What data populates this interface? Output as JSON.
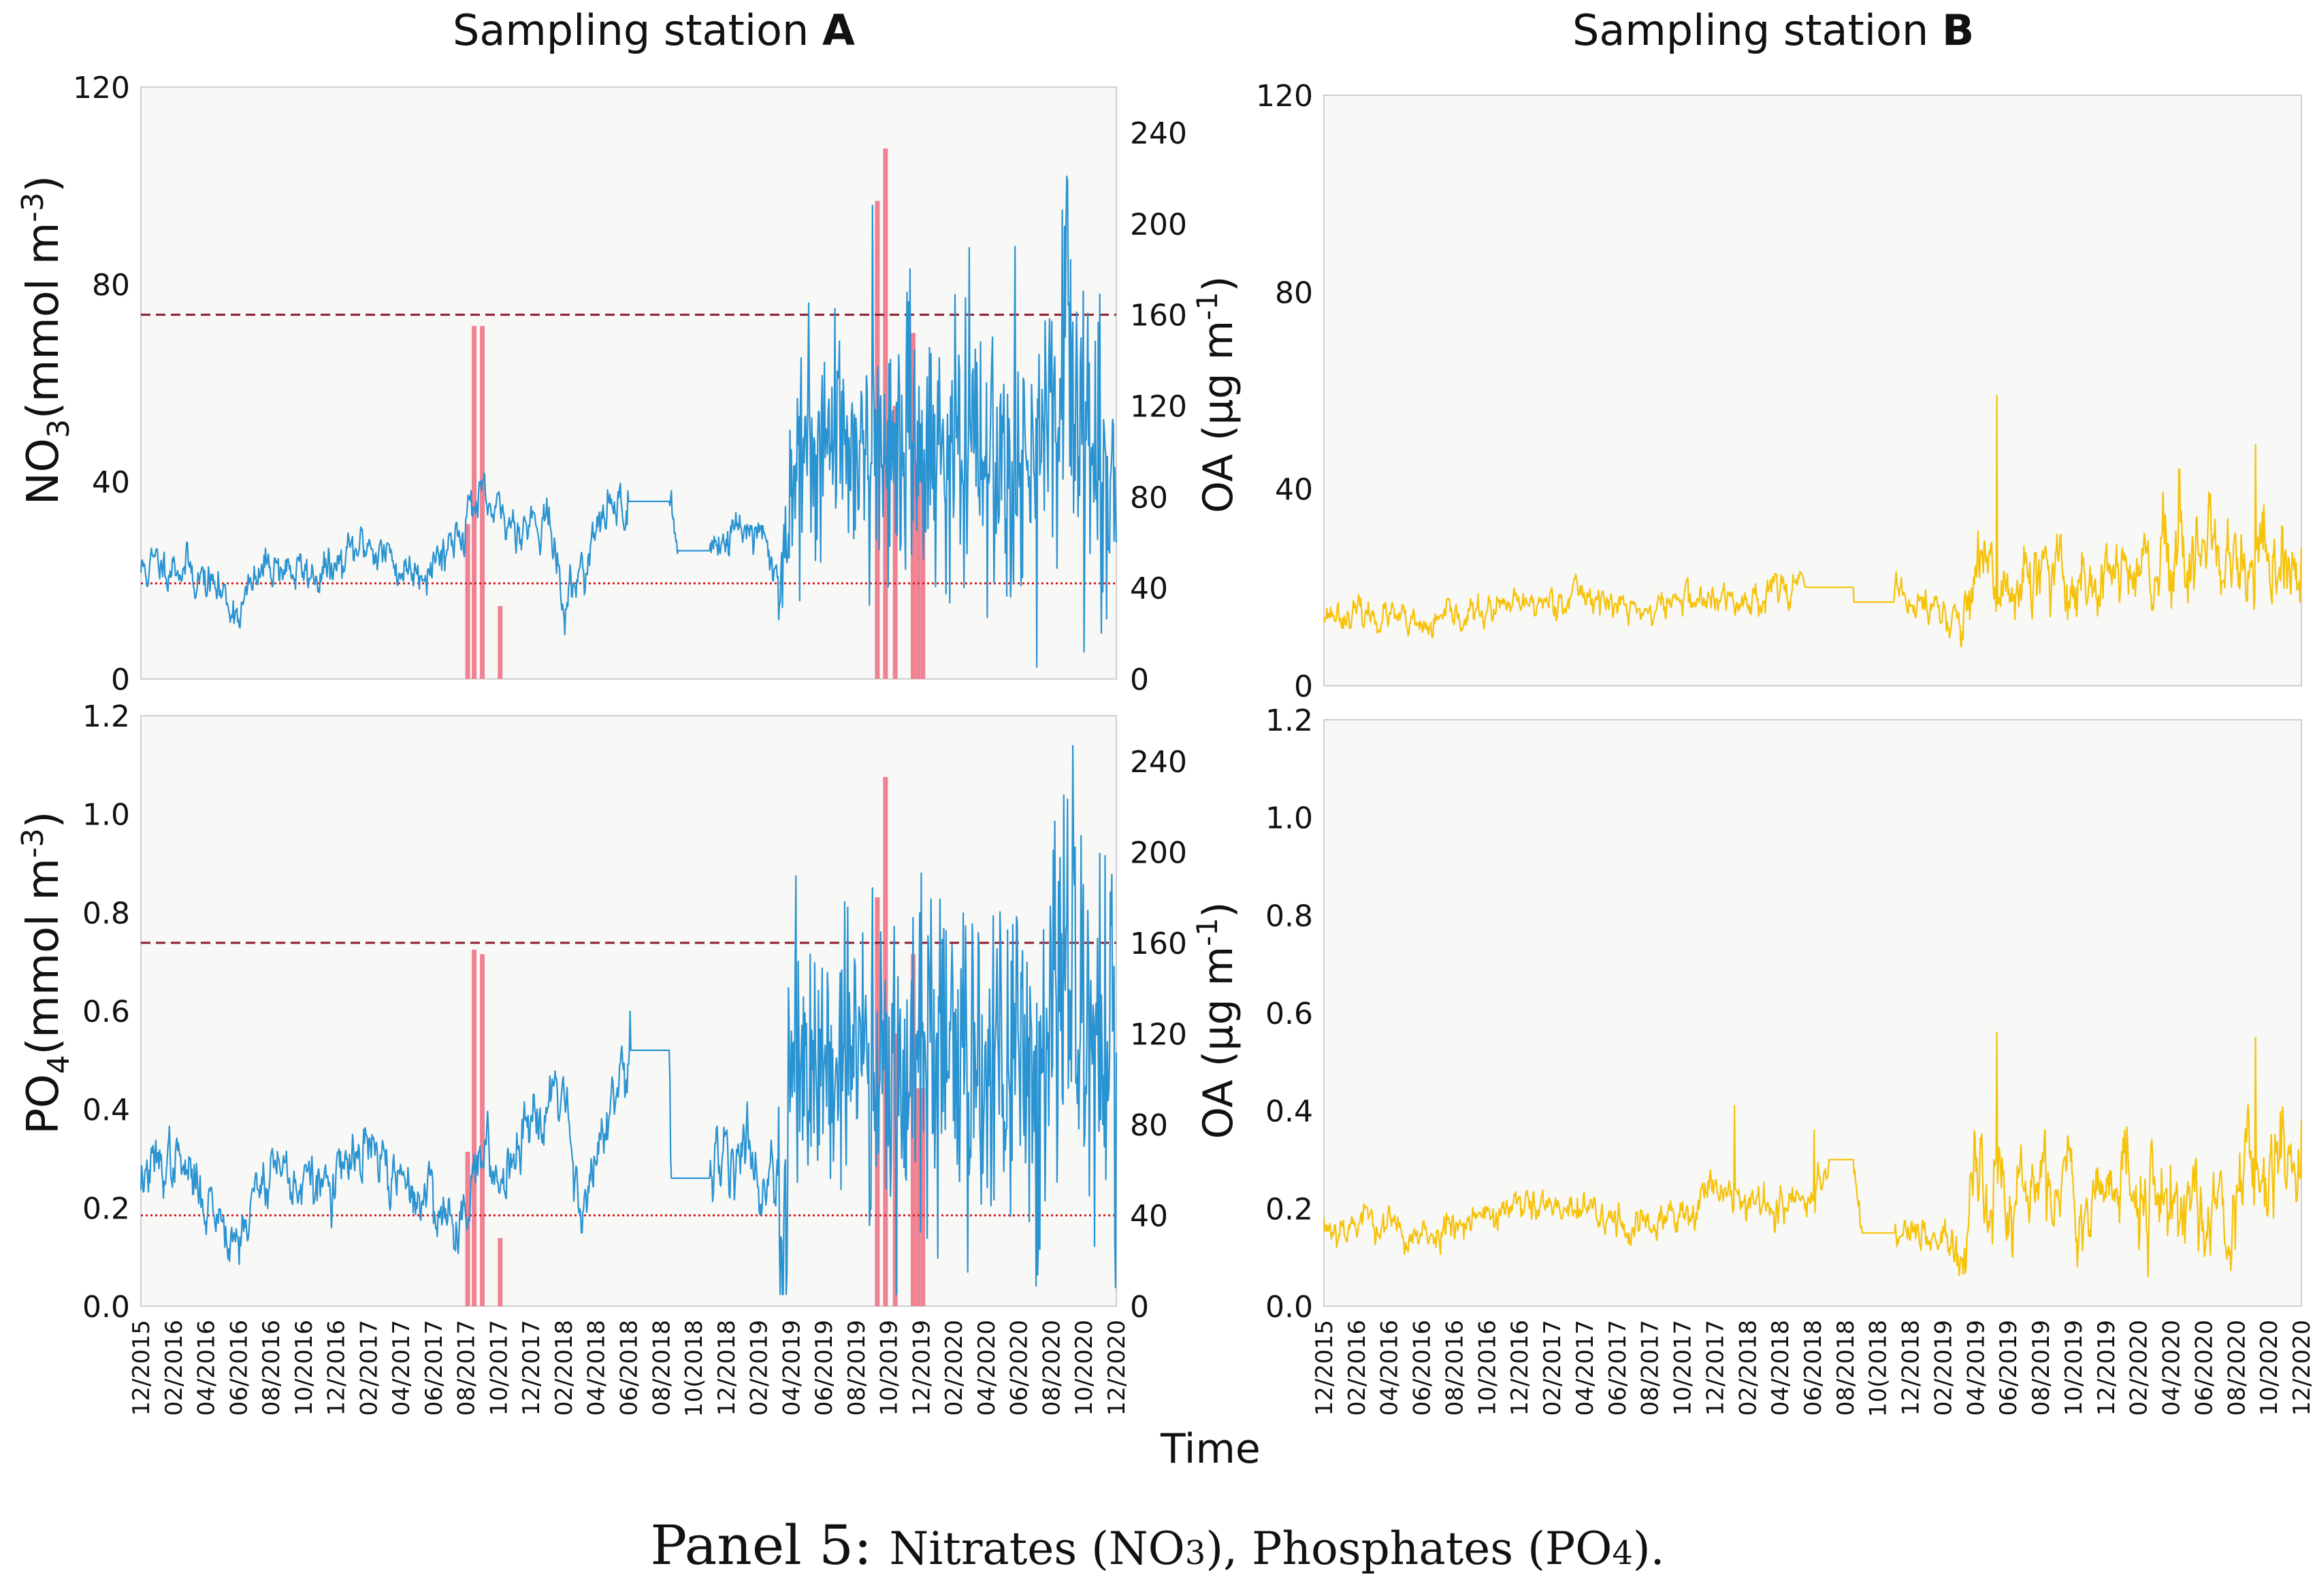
{
  "titles": {
    "left_prefix": "Sampling station ",
    "left_bold": "A",
    "right_prefix": "Sampling station ",
    "right_bold": "B"
  },
  "x_axis_title": "Time",
  "caption": {
    "lead": "Panel 5: ",
    "nitrates": "Nitrates (NO",
    "nitrates_sub": "3",
    "mid": "), Phosphates (PO",
    "phosphates_sub": "4",
    "end": ")."
  },
  "axis_labels": {
    "no3_main": "NO",
    "no3_sub": "3",
    "no3_unit": "(mmol m",
    "no3_sup": "-3",
    "po4_main": "PO",
    "po4_sub": "4",
    "po4_unit": "(mmol m",
    "po4_sup": "-3",
    "oa_main": "OA (µg m",
    "oa_sup": "-1",
    "oa_end": ")"
  },
  "colors": {
    "station_a_line": "#2a93d1",
    "station_b_line": "#f6c20a",
    "oa_bars": "#ef8192",
    "threshold_high": "#8b1a2b",
    "threshold_low": "#d42020",
    "plot_bg": "#f8f8f6"
  },
  "chart_data": [
    {
      "id": "no3_station_a",
      "type": "line",
      "title": "Sampling station A",
      "ylabel": "NO3 (mmol m-3)",
      "ylim": [
        0,
        120
      ],
      "yticks": [
        "0",
        "40",
        "80",
        "120"
      ],
      "y2label": "OA (µg m-1)",
      "y2lim": [
        0,
        260
      ],
      "y2ticks": [
        "0",
        "40",
        "80",
        "120",
        "160",
        "200",
        "240"
      ],
      "xlim_months": [
        0,
        60
      ],
      "keypoints": [
        [
          0,
          22
        ],
        [
          2,
          24
        ],
        [
          4,
          20
        ],
        [
          6,
          14
        ],
        [
          8,
          24
        ],
        [
          10,
          21
        ],
        [
          12,
          22
        ],
        [
          14,
          28
        ],
        [
          16,
          22
        ],
        [
          18,
          24
        ],
        [
          19.5,
          30
        ],
        [
          20.5,
          36
        ],
        [
          22,
          32
        ],
        [
          24,
          32
        ],
        [
          25,
          34
        ],
        [
          26,
          14
        ],
        [
          27,
          22
        ],
        [
          29,
          36
        ],
        [
          30,
          36
        ],
        [
          32.5,
          36
        ],
        [
          33,
          26
        ],
        [
          35,
          26
        ],
        [
          35.5,
          29
        ],
        [
          36,
          28
        ],
        [
          37,
          32
        ],
        [
          38,
          28
        ],
        [
          39.5,
          20
        ],
        [
          40,
          42
        ],
        [
          42,
          50
        ],
        [
          44,
          48
        ],
        [
          46,
          46
        ],
        [
          48,
          48
        ],
        [
          50,
          46
        ],
        [
          52,
          44
        ],
        [
          54,
          48
        ],
        [
          55,
          42
        ],
        [
          56,
          46
        ],
        [
          57,
          75
        ],
        [
          58,
          48
        ],
        [
          59,
          40
        ],
        [
          60,
          42
        ]
      ],
      "noise_std": [
        [
          0,
          3
        ],
        [
          39,
          3.5
        ],
        [
          39.5,
          11
        ],
        [
          56.5,
          15
        ],
        [
          57.5,
          16
        ],
        [
          58.5,
          14
        ],
        [
          60,
          14
        ]
      ],
      "gaps": [
        [
          30,
          32.5
        ],
        [
          33,
          35
        ]
      ],
      "peaks": [
        [
          45,
          96
        ],
        [
          57,
          101
        ],
        [
          59,
          78
        ]
      ],
      "oa_bars": [
        [
          20.1,
          68
        ],
        [
          20.5,
          155
        ],
        [
          21.0,
          155
        ],
        [
          22.1,
          32
        ],
        [
          45.3,
          210
        ],
        [
          45.8,
          233
        ],
        [
          46.4,
          120
        ],
        [
          47.5,
          152
        ],
        [
          47.8,
          95
        ],
        [
          48.1,
          96
        ]
      ],
      "threshold_high_oa": 160,
      "threshold_low_oa": 42,
      "series_name": "NO3 station A"
    },
    {
      "id": "no3_station_b",
      "type": "line",
      "title": "Sampling station B",
      "ylim": [
        0,
        120
      ],
      "yticks": [
        "0",
        "40",
        "80",
        "120"
      ],
      "xlim_months": [
        0,
        60
      ],
      "keypoints": [
        [
          0,
          15
        ],
        [
          4,
          14
        ],
        [
          6,
          11
        ],
        [
          8,
          14
        ],
        [
          12,
          16
        ],
        [
          16,
          19
        ],
        [
          18,
          16
        ],
        [
          20,
          15
        ],
        [
          22,
          18
        ],
        [
          24,
          17
        ],
        [
          26,
          17
        ],
        [
          28,
          21
        ],
        [
          29,
          21
        ],
        [
          29.5,
          20
        ],
        [
          32,
          20
        ],
        [
          32.5,
          17
        ],
        [
          35,
          17
        ],
        [
          35.5,
          18
        ],
        [
          38,
          15
        ],
        [
          39,
          12
        ],
        [
          40,
          20
        ],
        [
          44,
          20
        ],
        [
          46,
          22
        ],
        [
          50,
          22
        ],
        [
          53,
          24
        ],
        [
          56,
          22
        ],
        [
          58,
          24
        ],
        [
          60,
          22
        ]
      ],
      "noise_std": [
        [
          0,
          2
        ],
        [
          38,
          2.5
        ],
        [
          39.5,
          5
        ],
        [
          42,
          6
        ],
        [
          55,
          6
        ],
        [
          57,
          7
        ],
        [
          60,
          7
        ]
      ],
      "gaps": [
        [
          29.5,
          32.5
        ],
        [
          32.5,
          35
        ]
      ],
      "peaks": [
        [
          41.3,
          59
        ],
        [
          52.5,
          44
        ],
        [
          57.2,
          49
        ],
        [
          60,
          28
        ]
      ],
      "series_name": "NO3 station B"
    },
    {
      "id": "po4_station_a",
      "type": "line",
      "ylabel": "PO4 (mmol m-3)",
      "ylim": [
        0,
        1.2
      ],
      "yticks": [
        "0.0",
        "0.2",
        "0.4",
        "0.6",
        "0.8",
        "1.0",
        "1.2"
      ],
      "y2label": "OA (µg m-1)",
      "y2lim": [
        0,
        260
      ],
      "y2ticks": [
        "0",
        "40",
        "80",
        "120",
        "160",
        "200",
        "240"
      ],
      "xlim_months": [
        0,
        60
      ],
      "keypoints": [
        [
          0,
          0.26
        ],
        [
          2,
          0.3
        ],
        [
          4,
          0.22
        ],
        [
          6,
          0.14
        ],
        [
          8,
          0.3
        ],
        [
          10,
          0.24
        ],
        [
          12,
          0.25
        ],
        [
          14,
          0.32
        ],
        [
          16,
          0.24
        ],
        [
          18,
          0.22
        ],
        [
          19.5,
          0.15
        ],
        [
          20.5,
          0.3
        ],
        [
          22,
          0.26
        ],
        [
          24,
          0.4
        ],
        [
          26,
          0.46
        ],
        [
          27,
          0.2
        ],
        [
          29,
          0.4
        ],
        [
          30,
          0.45
        ],
        [
          30.1,
          0.52
        ],
        [
          32.5,
          0.52
        ],
        [
          32.6,
          0.26
        ],
        [
          35,
          0.26
        ],
        [
          35.5,
          0.3
        ],
        [
          37,
          0.34
        ],
        [
          39.5,
          0.2
        ],
        [
          40,
          0.5
        ],
        [
          44,
          0.52
        ],
        [
          48,
          0.5
        ],
        [
          50,
          0.52
        ],
        [
          54,
          0.5
        ],
        [
          56,
          0.48
        ],
        [
          57,
          0.75
        ],
        [
          58,
          0.5
        ],
        [
          60,
          0.48
        ]
      ],
      "noise_std": [
        [
          0,
          0.04
        ],
        [
          39,
          0.05
        ],
        [
          39.5,
          0.16
        ],
        [
          56,
          0.18
        ],
        [
          58,
          0.2
        ],
        [
          60,
          0.18
        ]
      ],
      "gaps": [
        [
          30.1,
          32.5
        ],
        [
          32.6,
          35
        ]
      ],
      "peaks": [
        [
          45,
          0.85
        ],
        [
          48,
          0.88
        ],
        [
          57,
          1.03
        ],
        [
          59,
          0.92
        ]
      ],
      "oa_bars": [
        [
          20.1,
          68
        ],
        [
          20.5,
          157
        ],
        [
          21.0,
          155
        ],
        [
          22.1,
          30
        ],
        [
          45.3,
          180
        ],
        [
          45.8,
          233
        ],
        [
          46.4,
          120
        ],
        [
          47.5,
          155
        ],
        [
          47.8,
          96
        ],
        [
          48.1,
          96
        ]
      ],
      "threshold_high_oa": 160,
      "threshold_low_oa": 40,
      "series_name": "PO4 station A"
    },
    {
      "id": "po4_station_b",
      "type": "line",
      "ylim": [
        0,
        1.2
      ],
      "yticks": [
        "0.0",
        "0.2",
        "0.4",
        "0.6",
        "0.8",
        "1.0",
        "1.2"
      ],
      "xlim_months": [
        0,
        60
      ],
      "keypoints": [
        [
          0,
          0.16
        ],
        [
          3,
          0.18
        ],
        [
          6,
          0.13
        ],
        [
          8,
          0.18
        ],
        [
          12,
          0.2
        ],
        [
          16,
          0.19
        ],
        [
          20,
          0.16
        ],
        [
          22,
          0.18
        ],
        [
          24,
          0.26
        ],
        [
          26,
          0.22
        ],
        [
          28,
          0.2
        ],
        [
          30,
          0.22
        ],
        [
          31,
          0.3
        ],
        [
          32.5,
          0.3
        ],
        [
          33,
          0.15
        ],
        [
          35,
          0.15
        ],
        [
          36,
          0.17
        ],
        [
          38,
          0.12
        ],
        [
          39,
          0.1
        ],
        [
          40,
          0.22
        ],
        [
          44,
          0.24
        ],
        [
          48,
          0.24
        ],
        [
          52,
          0.22
        ],
        [
          56,
          0.22
        ],
        [
          58,
          0.3
        ],
        [
          60,
          0.28
        ]
      ],
      "noise_std": [
        [
          0,
          0.025
        ],
        [
          38,
          0.03
        ],
        [
          39.5,
          0.06
        ],
        [
          41,
          0.07
        ],
        [
          56,
          0.07
        ],
        [
          58,
          0.08
        ],
        [
          60,
          0.08
        ]
      ],
      "gaps": [
        [
          31,
          32.5
        ],
        [
          33,
          35
        ]
      ],
      "peaks": [
        [
          25.2,
          0.41
        ],
        [
          30.1,
          0.36
        ],
        [
          41.3,
          0.56
        ],
        [
          57.2,
          0.55
        ],
        [
          60,
          0.38
        ]
      ],
      "series_name": "PO4 station B"
    }
  ],
  "x_ticks": [
    "12/2015",
    "02/2016",
    "04/2016",
    "06/2016",
    "08/2016",
    "10/2016",
    "12/2016",
    "02/2017",
    "04/2017",
    "06/2017",
    "08/2017",
    "10/2017",
    "12/2017",
    "02/2018",
    "04/2018",
    "06/2018",
    "08/2018",
    "10(2018",
    "12/2018",
    "02/2019",
    "04/2019",
    "06/2019",
    "08/2019",
    "10/2019",
    "12/2019",
    "02/2020",
    "04/2020",
    "06/2020",
    "08/2020",
    "10/2020",
    "12/2020"
  ]
}
